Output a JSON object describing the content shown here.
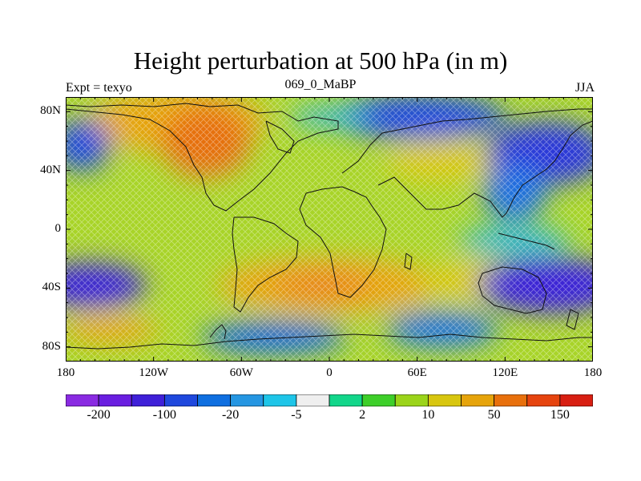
{
  "title": "Height perturbation at 500 hPa (in m)",
  "left_label": "Expt = texyo",
  "center_label": "069_0_MaBP",
  "right_label": "JJA",
  "map": {
    "lat_ticks": [
      "80N",
      "40N",
      "0",
      "40S",
      "80S"
    ],
    "lat_values": [
      80,
      40,
      0,
      -40,
      -80
    ],
    "lon_ticks": [
      "180",
      "120W",
      "60W",
      "0",
      "60E",
      "120E",
      "180"
    ],
    "lon_values": [
      -180,
      -120,
      -60,
      0,
      60,
      120,
      180
    ],
    "lat_range": [
      -90,
      90
    ],
    "lon_range": [
      -180,
      180
    ]
  },
  "colorbar": {
    "colors": [
      "#8a2be2",
      "#6a1ee0",
      "#3f20d8",
      "#1f48dd",
      "#0f6fe0",
      "#2596e2",
      "#1ec5e8",
      "#efefef",
      "#12d68a",
      "#3ecf2a",
      "#9bd41a",
      "#d8c60f",
      "#e6a40b",
      "#e8700c",
      "#e6440f",
      "#d81f12"
    ],
    "labels": [
      "-200",
      "-100",
      "-20",
      "-5",
      "2",
      "10",
      "50",
      "150"
    ],
    "label_boundary_index": [
      1,
      3,
      5,
      7,
      9,
      11,
      13,
      15
    ]
  },
  "colors": {
    "negative_strong": "#3a2ad8",
    "negative": "#1565e0",
    "neutral": "#b8d830",
    "positive": "#e6a40b",
    "positive_strong": "#e6700c",
    "background_field": "#a8d428"
  }
}
